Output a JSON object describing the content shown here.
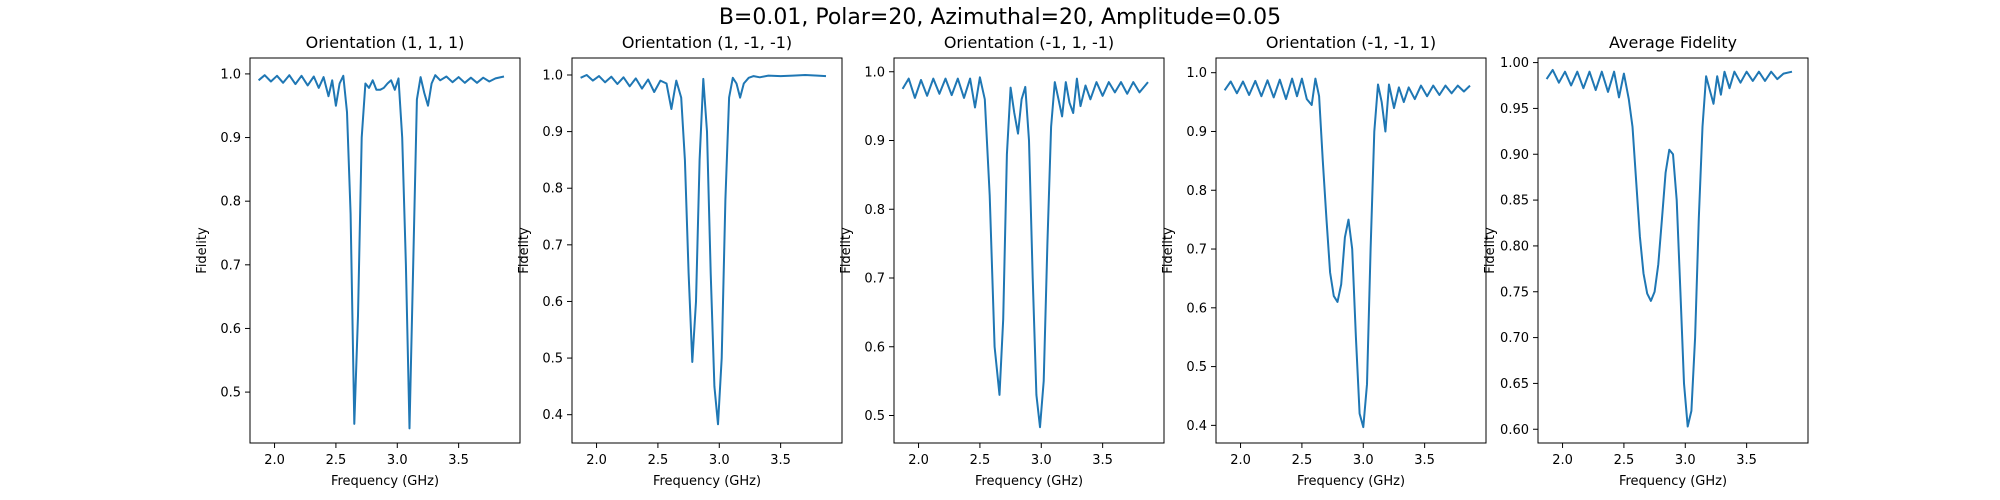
{
  "figure": {
    "suptitle": "B=0.01, Polar=20, Azimuthal=20, Amplitude=0.05"
  },
  "chart_data": [
    {
      "type": "line",
      "title": "Orientation (1, 1, 1)",
      "xlabel": "Frequency (GHz)",
      "ylabel": "Fidelity",
      "xlim": [
        1.8,
        4.0
      ],
      "ylim": [
        0.42,
        1.025
      ],
      "xticks": [
        2.0,
        2.5,
        3.0,
        3.5
      ],
      "yticks": [
        0.5,
        0.6,
        0.7,
        0.8,
        0.9,
        1.0
      ],
      "ytick_labels": [
        "0.5",
        "0.6",
        "0.7",
        "0.8",
        "0.9",
        "1.0"
      ],
      "color": "#1f77b4",
      "series": [
        {
          "x": [
            1.87,
            1.92,
            1.97,
            2.02,
            2.07,
            2.12,
            2.17,
            2.22,
            2.27,
            2.32,
            2.36,
            2.4,
            2.44,
            2.47,
            2.5,
            2.53,
            2.56,
            2.59,
            2.62,
            2.65,
            2.68,
            2.71,
            2.74,
            2.77,
            2.8,
            2.83,
            2.86,
            2.89,
            2.92,
            2.95,
            2.98,
            3.01,
            3.04,
            3.07,
            3.1,
            3.13,
            3.16,
            3.19,
            3.22,
            3.25,
            3.28,
            3.31,
            3.35,
            3.4,
            3.45,
            3.5,
            3.55,
            3.6,
            3.65,
            3.7,
            3.75,
            3.8,
            3.87
          ],
          "y": [
            0.99,
            0.998,
            0.988,
            0.997,
            0.986,
            0.998,
            0.984,
            0.997,
            0.982,
            0.996,
            0.978,
            0.995,
            0.965,
            0.99,
            0.95,
            0.985,
            0.997,
            0.94,
            0.78,
            0.45,
            0.62,
            0.9,
            0.985,
            0.978,
            0.99,
            0.975,
            0.975,
            0.978,
            0.985,
            0.99,
            0.975,
            0.993,
            0.9,
            0.7,
            0.443,
            0.7,
            0.96,
            0.995,
            0.97,
            0.95,
            0.985,
            0.998,
            0.99,
            0.996,
            0.987,
            0.995,
            0.986,
            0.994,
            0.986,
            0.994,
            0.988,
            0.993,
            0.996
          ]
        }
      ]
    },
    {
      "type": "line",
      "title": "Orientation (1, -1, -1)",
      "xlabel": "Frequency (GHz)",
      "ylabel": "Fidelity",
      "xlim": [
        1.8,
        4.0
      ],
      "ylim": [
        0.35,
        1.03
      ],
      "xticks": [
        2.0,
        2.5,
        3.0,
        3.5
      ],
      "yticks": [
        0.4,
        0.5,
        0.6,
        0.7,
        0.8,
        0.9,
        1.0
      ],
      "ytick_labels": [
        "0.4",
        "0.5",
        "0.6",
        "0.7",
        "0.8",
        "0.9",
        "1.0"
      ],
      "color": "#1f77b4",
      "series": [
        {
          "x": [
            1.87,
            1.92,
            1.97,
            2.02,
            2.07,
            2.12,
            2.17,
            2.22,
            2.27,
            2.32,
            2.37,
            2.42,
            2.47,
            2.52,
            2.57,
            2.61,
            2.65,
            2.69,
            2.72,
            2.75,
            2.78,
            2.81,
            2.84,
            2.87,
            2.9,
            2.93,
            2.96,
            2.99,
            3.02,
            3.05,
            3.08,
            3.11,
            3.14,
            3.17,
            3.2,
            3.24,
            3.28,
            3.33,
            3.4,
            3.5,
            3.6,
            3.7,
            3.8,
            3.87
          ],
          "y": [
            0.995,
            1.0,
            0.99,
            0.998,
            0.987,
            0.997,
            0.984,
            0.996,
            0.98,
            0.994,
            0.976,
            0.992,
            0.97,
            0.99,
            0.985,
            0.94,
            0.99,
            0.96,
            0.85,
            0.65,
            0.493,
            0.6,
            0.85,
            0.993,
            0.9,
            0.65,
            0.45,
            0.383,
            0.5,
            0.78,
            0.96,
            0.995,
            0.985,
            0.96,
            0.985,
            0.995,
            0.998,
            0.996,
            0.999,
            0.998,
            0.999,
            1.0,
            0.999,
            0.998
          ]
        }
      ]
    },
    {
      "type": "line",
      "title": "Orientation (-1, 1, -1)",
      "xlabel": "Frequency (GHz)",
      "ylabel": "Fidelity",
      "xlim": [
        1.8,
        4.0
      ],
      "ylim": [
        0.46,
        1.02
      ],
      "xticks": [
        2.0,
        2.5,
        3.0,
        3.5
      ],
      "yticks": [
        0.5,
        0.6,
        0.7,
        0.8,
        0.9,
        1.0
      ],
      "ytick_labels": [
        "0.5",
        "0.6",
        "0.7",
        "0.8",
        "0.9",
        "1.0"
      ],
      "color": "#1f77b4",
      "series": [
        {
          "x": [
            1.87,
            1.92,
            1.97,
            2.02,
            2.07,
            2.12,
            2.17,
            2.22,
            2.27,
            2.32,
            2.37,
            2.42,
            2.46,
            2.5,
            2.54,
            2.58,
            2.62,
            2.66,
            2.69,
            2.72,
            2.75,
            2.78,
            2.81,
            2.84,
            2.87,
            2.9,
            2.93,
            2.96,
            2.99,
            3.02,
            3.05,
            3.08,
            3.11,
            3.14,
            3.17,
            3.2,
            3.23,
            3.26,
            3.29,
            3.32,
            3.36,
            3.4,
            3.45,
            3.5,
            3.55,
            3.6,
            3.65,
            3.7,
            3.75,
            3.8,
            3.87
          ],
          "y": [
            0.975,
            0.99,
            0.962,
            0.988,
            0.965,
            0.99,
            0.968,
            0.99,
            0.966,
            0.99,
            0.962,
            0.99,
            0.948,
            0.992,
            0.96,
            0.82,
            0.6,
            0.53,
            0.64,
            0.88,
            0.977,
            0.94,
            0.91,
            0.96,
            0.978,
            0.9,
            0.7,
            0.53,
            0.483,
            0.55,
            0.75,
            0.92,
            0.985,
            0.96,
            0.935,
            0.985,
            0.955,
            0.94,
            0.99,
            0.95,
            0.98,
            0.96,
            0.985,
            0.965,
            0.985,
            0.97,
            0.985,
            0.968,
            0.985,
            0.97,
            0.985
          ]
        }
      ]
    },
    {
      "type": "line",
      "title": "Orientation (-1, -1, 1)",
      "xlabel": "Frequency (GHz)",
      "ylabel": "Fidelity",
      "xlim": [
        1.8,
        4.0
      ],
      "ylim": [
        0.37,
        1.025
      ],
      "xticks": [
        2.0,
        2.5,
        3.0,
        3.5
      ],
      "yticks": [
        0.4,
        0.5,
        0.6,
        0.7,
        0.8,
        0.9,
        1.0
      ],
      "ytick_labels": [
        "0.4",
        "0.5",
        "0.6",
        "0.7",
        "0.8",
        "0.9",
        "1.0"
      ],
      "color": "#1f77b4",
      "series": [
        {
          "x": [
            1.87,
            1.92,
            1.97,
            2.02,
            2.07,
            2.12,
            2.17,
            2.22,
            2.27,
            2.32,
            2.37,
            2.42,
            2.46,
            2.5,
            2.54,
            2.58,
            2.61,
            2.64,
            2.67,
            2.7,
            2.73,
            2.76,
            2.79,
            2.82,
            2.85,
            2.88,
            2.91,
            2.94,
            2.97,
            3.0,
            3.03,
            3.06,
            3.09,
            3.12,
            3.15,
            3.18,
            3.21,
            3.25,
            3.29,
            3.33,
            3.37,
            3.42,
            3.47,
            3.52,
            3.57,
            3.62,
            3.67,
            3.72,
            3.77,
            3.82,
            3.87
          ],
          "y": [
            0.97,
            0.985,
            0.965,
            0.985,
            0.962,
            0.986,
            0.96,
            0.987,
            0.958,
            0.988,
            0.955,
            0.99,
            0.96,
            0.99,
            0.955,
            0.945,
            0.99,
            0.96,
            0.85,
            0.75,
            0.66,
            0.62,
            0.61,
            0.64,
            0.72,
            0.75,
            0.7,
            0.55,
            0.42,
            0.397,
            0.47,
            0.7,
            0.9,
            0.98,
            0.95,
            0.9,
            0.98,
            0.94,
            0.975,
            0.95,
            0.975,
            0.955,
            0.978,
            0.96,
            0.978,
            0.962,
            0.978,
            0.965,
            0.978,
            0.968,
            0.978
          ]
        }
      ]
    },
    {
      "type": "line",
      "title": "Average Fidelity",
      "xlabel": "Frequency (GHz)",
      "ylabel": "Fidelity",
      "xlim": [
        1.8,
        4.0
      ],
      "ylim": [
        0.585,
        1.005
      ],
      "xticks": [
        2.0,
        2.5,
        3.0,
        3.5
      ],
      "yticks": [
        0.6,
        0.65,
        0.7,
        0.75,
        0.8,
        0.85,
        0.9,
        0.95,
        1.0
      ],
      "ytick_labels": [
        "0.60",
        "0.65",
        "0.70",
        "0.75",
        "0.80",
        "0.85",
        "0.90",
        "0.95",
        "1.00"
      ],
      "color": "#1f77b4",
      "series": [
        {
          "x": [
            1.87,
            1.92,
            1.97,
            2.02,
            2.07,
            2.12,
            2.17,
            2.22,
            2.27,
            2.32,
            2.37,
            2.42,
            2.46,
            2.5,
            2.54,
            2.57,
            2.6,
            2.63,
            2.66,
            2.69,
            2.72,
            2.75,
            2.78,
            2.81,
            2.84,
            2.87,
            2.9,
            2.93,
            2.96,
            2.99,
            3.02,
            3.05,
            3.08,
            3.11,
            3.14,
            3.17,
            3.2,
            3.23,
            3.26,
            3.29,
            3.32,
            3.36,
            3.4,
            3.45,
            3.5,
            3.55,
            3.6,
            3.65,
            3.7,
            3.75,
            3.8,
            3.87
          ],
          "y": [
            0.982,
            0.992,
            0.978,
            0.99,
            0.975,
            0.99,
            0.972,
            0.99,
            0.97,
            0.99,
            0.968,
            0.99,
            0.962,
            0.988,
            0.96,
            0.93,
            0.87,
            0.81,
            0.77,
            0.748,
            0.74,
            0.75,
            0.78,
            0.83,
            0.88,
            0.905,
            0.9,
            0.85,
            0.75,
            0.65,
            0.603,
            0.62,
            0.7,
            0.83,
            0.93,
            0.985,
            0.97,
            0.955,
            0.985,
            0.965,
            0.99,
            0.972,
            0.99,
            0.978,
            0.99,
            0.98,
            0.99,
            0.98,
            0.99,
            0.982,
            0.988,
            0.99
          ]
        }
      ]
    }
  ]
}
